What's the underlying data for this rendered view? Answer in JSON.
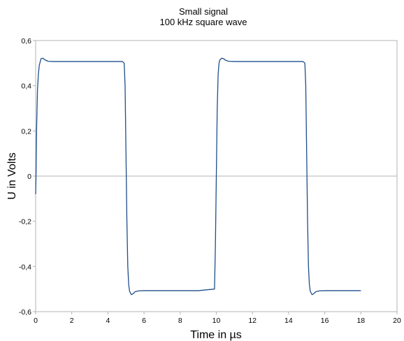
{
  "chart_data": {
    "type": "line",
    "title": "Small signal",
    "subtitle": "100 kHz square wave",
    "xlabel": "Time in µs",
    "ylabel": "U in Volts",
    "xlim": [
      0,
      20
    ],
    "ylim": [
      -0.6,
      0.6
    ],
    "x_ticks": [
      "0",
      "2",
      "4",
      "6",
      "8",
      "10",
      "12",
      "14",
      "16",
      "18",
      "20"
    ],
    "y_ticks": [
      "-0,6",
      "-0,4",
      "-0,2",
      "0",
      "0,2",
      "0,4",
      "0,6"
    ],
    "grid": false,
    "zero_line": true,
    "legend": "none",
    "line_color": "#1f4e8c",
    "series": [
      {
        "x": [
          0.0,
          0.02,
          0.05,
          0.1,
          0.15,
          0.2,
          0.3,
          0.4,
          0.5,
          0.7,
          1.0,
          2.0,
          3.0,
          4.0,
          4.8,
          4.9,
          4.95,
          5.0,
          5.05,
          5.1,
          5.15,
          5.2,
          5.3,
          5.4,
          5.5,
          5.7,
          6.0,
          7.0,
          8.0,
          9.0,
          9.9,
          9.95,
          10.0,
          10.05,
          10.1,
          10.15,
          10.2,
          10.3,
          10.4,
          10.5,
          10.7,
          11.0,
          12.0,
          13.0,
          14.0,
          14.8,
          14.9,
          14.95,
          15.0,
          15.05,
          15.1,
          15.15,
          15.2,
          15.3,
          15.4,
          15.5,
          15.7,
          16.0,
          17.0,
          18.0
        ],
        "y": [
          -0.08,
          0.0,
          0.2,
          0.38,
          0.45,
          0.49,
          0.52,
          0.522,
          0.515,
          0.508,
          0.507,
          0.507,
          0.507,
          0.507,
          0.507,
          0.5,
          0.4,
          0.1,
          -0.2,
          -0.4,
          -0.48,
          -0.51,
          -0.525,
          -0.52,
          -0.512,
          -0.508,
          -0.507,
          -0.507,
          -0.507,
          -0.507,
          -0.5,
          -0.3,
          0.0,
          0.3,
          0.45,
          0.5,
          0.515,
          0.522,
          0.52,
          0.513,
          0.508,
          0.507,
          0.507,
          0.507,
          0.507,
          0.507,
          0.5,
          0.4,
          0.1,
          -0.2,
          -0.4,
          -0.48,
          -0.51,
          -0.525,
          -0.52,
          -0.512,
          -0.508,
          -0.507,
          -0.507,
          -0.507
        ]
      }
    ]
  }
}
